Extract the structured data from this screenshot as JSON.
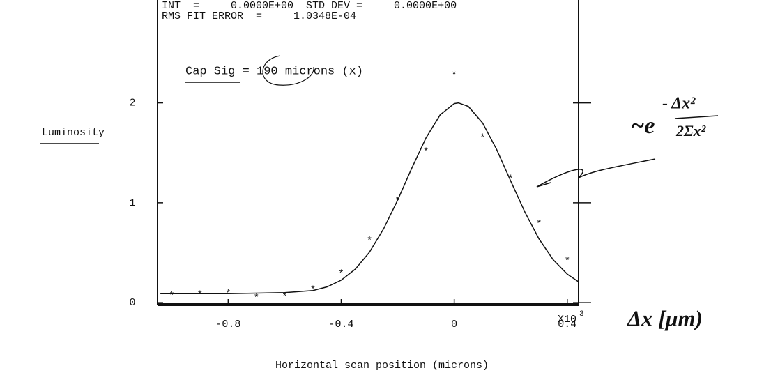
{
  "chart_data": {
    "type": "scatter",
    "header_lines": [
      "INT  =     0.0000E+00  STD DEV =     0.0000E+00",
      "RMS FIT ERROR  =     1.0348E-04"
    ],
    "label": "Cap Sig = 190 microns (x)",
    "xlabel": "Horizontal scan position (microns)",
    "ylabel": "Luminosity",
    "x_multiplier": "X10",
    "x_multiplier_exp": "3",
    "annotations": [
      "~e",
      "- Δx²",
      "2Σx²",
      "Δx [μm)"
    ],
    "xlim": [
      -1.05,
      0.44
    ],
    "ylim": [
      -0.02,
      3.03
    ],
    "xticks": [
      -0.8,
      -0.4,
      0.0,
      0.4
    ],
    "yticks": [
      0,
      1,
      2
    ],
    "series": [
      {
        "color": "#111111",
        "marker": "*",
        "x": [
          -1.0,
          -0.9,
          -0.8,
          -0.7,
          -0.6,
          -0.5,
          -0.4,
          -0.3,
          -0.2,
          -0.1,
          0.0,
          0.1,
          0.2,
          0.3,
          0.4
        ],
        "values": [
          0.09,
          0.1,
          0.11,
          0.07,
          0.08,
          0.15,
          0.31,
          0.64,
          1.04,
          1.53,
          2.3,
          1.67,
          1.26,
          0.81,
          0.44
        ]
      },
      {
        "color": "#111111",
        "line": true,
        "x": [
          -1.04,
          -0.8,
          -0.6,
          -0.5,
          -0.45,
          -0.4,
          -0.35,
          -0.3,
          -0.25,
          -0.2,
          -0.15,
          -0.1,
          -0.05,
          0.0,
          0.015,
          0.05,
          0.1,
          0.15,
          0.2,
          0.25,
          0.3,
          0.35,
          0.4,
          0.44
        ],
        "values": [
          0.09,
          0.09,
          0.1,
          0.122,
          0.158,
          0.225,
          0.336,
          0.505,
          0.739,
          1.028,
          1.347,
          1.649,
          1.88,
          1.993,
          2.0,
          1.964,
          1.8,
          1.534,
          1.217,
          0.906,
          0.638,
          0.43,
          0.285,
          0.208
        ]
      }
    ]
  }
}
